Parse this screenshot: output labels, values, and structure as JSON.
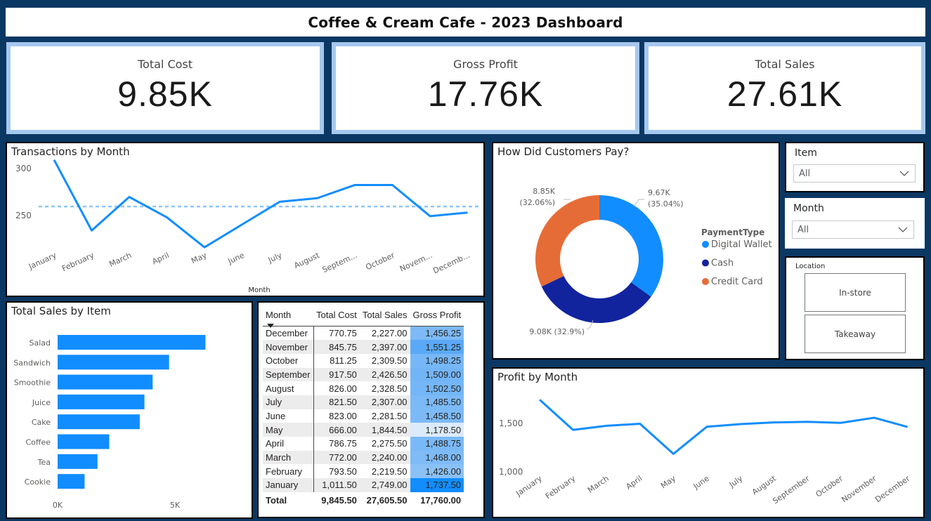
{
  "title": "Coffee & Cream Cafe - 2023 Dashboard",
  "kpis": [
    {
      "label": "Total Cost",
      "value": "9.85K"
    },
    {
      "label": "Gross Profit",
      "value": "17.76K"
    },
    {
      "label": "Total Sales",
      "value": "27.61K"
    }
  ],
  "transactions": {
    "title": "Transactions by Month",
    "xlabel": "Month",
    "yticks": [
      "300",
      "250"
    ],
    "ref_line": 258,
    "color": "#118dff",
    "months": [
      "January",
      "February",
      "March",
      "April",
      "May",
      "June",
      "July",
      "August",
      "Septem...",
      "October",
      "Novem...",
      "Decemb..."
    ]
  },
  "payment": {
    "title": "How Did Customers Pay?",
    "legend_title": "PaymentType",
    "labels": {
      "digital": [
        "9.67K",
        "(35.04%)"
      ],
      "credit": [
        "8.85K",
        "(32.06%)"
      ],
      "cash": "9.08K (32.9%)"
    }
  },
  "sales_by_item": {
    "title": "Total Sales by Item",
    "xticks": [
      "0K",
      "5K"
    ],
    "color": "#118dff"
  },
  "table": {
    "headers": [
      "Month",
      "Total Cost",
      "Total Sales",
      "Gross Profit"
    ],
    "rows": [
      [
        "December",
        "770.75",
        "2,227.00",
        "1,456.25"
      ],
      [
        "November",
        "845.75",
        "2,397.00",
        "1,551.25"
      ],
      [
        "October",
        "811.25",
        "2,309.50",
        "1,498.25"
      ],
      [
        "September",
        "917.50",
        "2,426.50",
        "1,509.00"
      ],
      [
        "August",
        "826.00",
        "2,328.50",
        "1,502.50"
      ],
      [
        "July",
        "821.50",
        "2,307.00",
        "1,485.50"
      ],
      [
        "June",
        "823.00",
        "2,281.50",
        "1,458.50"
      ],
      [
        "May",
        "666.00",
        "1,844.50",
        "1,178.50"
      ],
      [
        "April",
        "786.75",
        "2,275.50",
        "1,488.75"
      ],
      [
        "March",
        "772.00",
        "2,240.00",
        "1,468.00"
      ],
      [
        "February",
        "793.50",
        "2,219.50",
        "1,426.00"
      ],
      [
        "January",
        "1,011.50",
        "2,749.00",
        "1,737.50"
      ]
    ],
    "total": [
      "Total",
      "9,845.50",
      "27,605.50",
      "17,760.00"
    ],
    "gp_colors": [
      "#7dbaf7",
      "#5aa9f8",
      "#76b7f7",
      "#72b5f7",
      "#74b6f7",
      "#7bb9f7",
      "#7cbaf7",
      "#dcebfb",
      "#7ab9f7",
      "#7ebbf7",
      "#8ac1f6",
      "#118dff"
    ]
  },
  "item_slicer": {
    "title": "Item",
    "value": "All"
  },
  "month_slicer": {
    "title": "Month",
    "value": "All"
  },
  "location": {
    "title": "Location",
    "options": [
      "In-store",
      "Takeaway"
    ]
  },
  "profit": {
    "title": "Profit by Month",
    "yticks": [
      "1,500",
      "1,000"
    ],
    "months": [
      "January",
      "February",
      "March",
      "April",
      "May",
      "June",
      "July",
      "August",
      "September",
      "October",
      "November",
      "December"
    ]
  },
  "chart_data": [
    {
      "type": "line",
      "title": "Transactions by Month",
      "xlabel": "Month",
      "x": [
        "January",
        "February",
        "March",
        "April",
        "May",
        "June",
        "July",
        "August",
        "September",
        "October",
        "November",
        "December"
      ],
      "series": [
        {
          "values": [
            297,
            238,
            266,
            249,
            224,
            243,
            262,
            265,
            276,
            276,
            250,
            253
          ]
        }
      ],
      "ylim": [
        220,
        305
      ]
    },
    {
      "type": "pie",
      "title": "How Did Customers Pay?",
      "series": [
        {
          "name": "Digital Wallet",
          "value": 9670,
          "percent": 35.04,
          "color": "#118dff"
        },
        {
          "name": "Cash",
          "value": 9080,
          "percent": 32.9,
          "color": "#12239e"
        },
        {
          "name": "Credit Card",
          "value": 8850,
          "percent": 32.06,
          "color": "#e66c37"
        }
      ]
    },
    {
      "type": "bar",
      "title": "Total Sales by Item",
      "categories": [
        "Salad",
        "Sandwich",
        "Smoothie",
        "Juice",
        "Cake",
        "Coffee",
        "Tea",
        "Cookie"
      ],
      "values": [
        6300,
        4750,
        4050,
        3700,
        3500,
        2200,
        1700,
        1150
      ],
      "xlim": [
        0,
        7500
      ]
    },
    {
      "type": "line",
      "title": "Profit by Month",
      "x": [
        "January",
        "February",
        "March",
        "April",
        "May",
        "June",
        "July",
        "August",
        "September",
        "October",
        "November",
        "December"
      ],
      "series": [
        {
          "values": [
            1737.5,
            1426.0,
            1468.0,
            1488.75,
            1178.5,
            1458.5,
            1485.5,
            1502.5,
            1509.0,
            1498.25,
            1551.25,
            1456.25
          ]
        }
      ],
      "ylim": [
        850,
        1800
      ]
    }
  ]
}
